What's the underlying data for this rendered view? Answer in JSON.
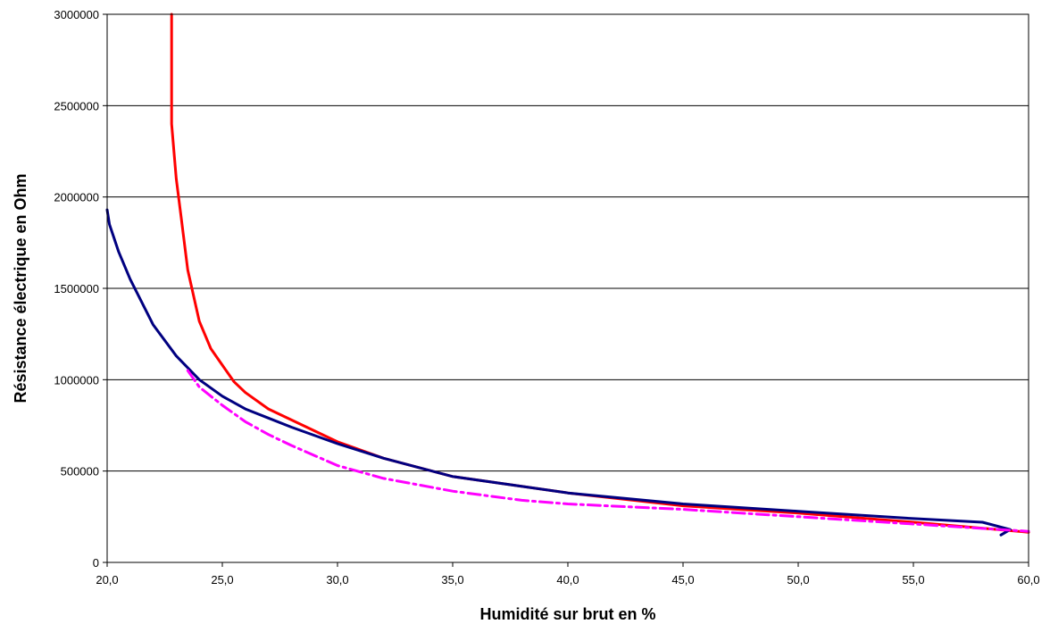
{
  "chart_data": {
    "type": "line",
    "title": "",
    "xlabel": "Humidité sur brut en %",
    "ylabel": "Résistance électrique en Ohm",
    "xlim": [
      20,
      60
    ],
    "ylim": [
      0,
      3000000
    ],
    "x_ticks": [
      "20,0",
      "25,0",
      "30,0",
      "35,0",
      "40,0",
      "45,0",
      "50,0",
      "55,0",
      "60,0"
    ],
    "y_ticks": [
      "0",
      "500000",
      "1000000",
      "1500000",
      "2000000",
      "2500000",
      "3000000"
    ],
    "grid": "horizontal",
    "legend": "none",
    "series": [
      {
        "color": "#ff0000",
        "dash": "solid",
        "points": [
          [
            22.8,
            3000000
          ],
          [
            22.8,
            2400000
          ],
          [
            23.0,
            2100000
          ],
          [
            23.2,
            1900000
          ],
          [
            23.5,
            1600000
          ],
          [
            24.0,
            1320000
          ],
          [
            24.5,
            1170000
          ],
          [
            25.0,
            1080000
          ],
          [
            25.5,
            990000
          ],
          [
            26.0,
            930000
          ],
          [
            27.0,
            840000
          ],
          [
            28.0,
            780000
          ],
          [
            30.0,
            660000
          ],
          [
            32.0,
            570000
          ],
          [
            35.0,
            470000
          ],
          [
            40.0,
            380000
          ],
          [
            45.0,
            310000
          ],
          [
            50.0,
            270000
          ],
          [
            55.0,
            220000
          ],
          [
            60.0,
            165000
          ]
        ]
      },
      {
        "color": "#000080",
        "dash": "solid",
        "points": [
          [
            20.0,
            1930000
          ],
          [
            20.1,
            1850000
          ],
          [
            20.5,
            1700000
          ],
          [
            21.0,
            1550000
          ],
          [
            22.0,
            1300000
          ],
          [
            23.0,
            1130000
          ],
          [
            24.0,
            1000000
          ],
          [
            25.0,
            910000
          ],
          [
            26.0,
            840000
          ],
          [
            27.0,
            790000
          ],
          [
            28.0,
            740000
          ],
          [
            30.0,
            650000
          ],
          [
            32.0,
            570000
          ],
          [
            35.0,
            470000
          ],
          [
            40.0,
            380000
          ],
          [
            45.0,
            320000
          ],
          [
            50.0,
            280000
          ],
          [
            55.0,
            240000
          ],
          [
            58.0,
            220000
          ],
          [
            59.2,
            180000
          ],
          [
            58.8,
            150000
          ]
        ]
      },
      {
        "color": "#ff00ff",
        "dash": "dashdot",
        "points": [
          [
            23.5,
            1050000
          ],
          [
            24.0,
            960000
          ],
          [
            25.0,
            860000
          ],
          [
            26.0,
            770000
          ],
          [
            27.0,
            700000
          ],
          [
            28.0,
            640000
          ],
          [
            30.0,
            530000
          ],
          [
            32.0,
            460000
          ],
          [
            35.0,
            390000
          ],
          [
            38.0,
            340000
          ],
          [
            40.0,
            320000
          ],
          [
            45.0,
            290000
          ],
          [
            50.0,
            250000
          ],
          [
            55.0,
            210000
          ],
          [
            60.0,
            170000
          ]
        ]
      }
    ]
  }
}
